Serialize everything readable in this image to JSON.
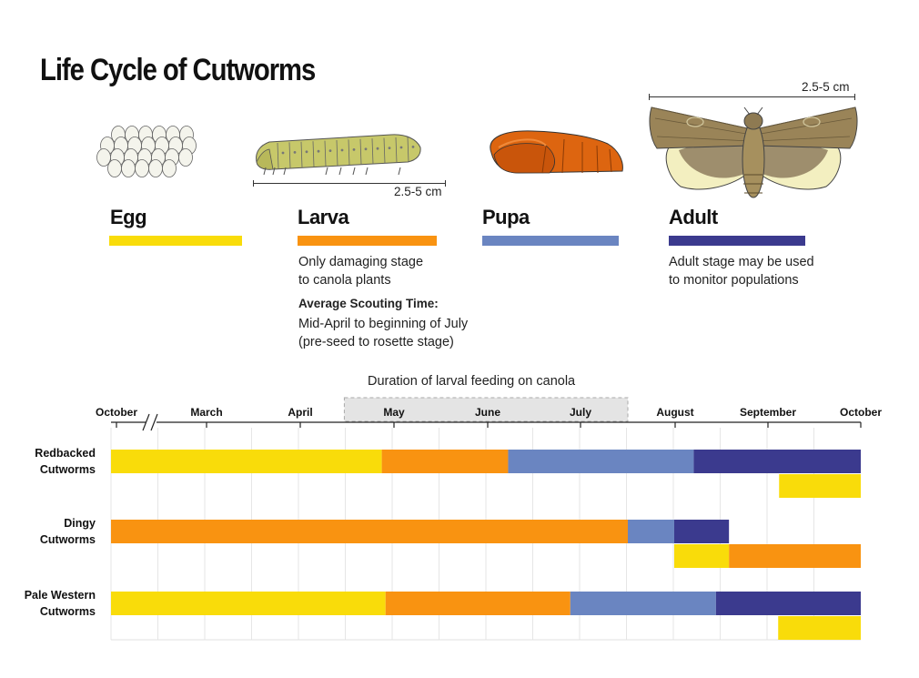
{
  "title": "Life Cycle of Cutworms",
  "colors": {
    "egg": "#f9dc0a",
    "larva": "#f99311",
    "pupa": "#6a85c1",
    "adult": "#3b3a8e",
    "window": "#e4e4e4"
  },
  "stages": [
    {
      "key": "egg",
      "label": "Egg",
      "icon": "egg-cluster-icon"
    },
    {
      "key": "larva",
      "label": "Larva",
      "icon": "larva-icon",
      "size": "2.5-5 cm",
      "description": [
        "Only damaging stage",
        "to canola plants"
      ],
      "scouting_title": "Average Scouting Time:",
      "scouting_text": [
        "Mid-April to beginning of July",
        "(pre-seed to rosette stage)"
      ]
    },
    {
      "key": "pupa",
      "label": "Pupa",
      "icon": "pupa-icon"
    },
    {
      "key": "adult",
      "label": "Adult",
      "icon": "moth-icon",
      "size": "2.5-5 cm",
      "description": [
        "Adult stage may be used",
        "to monitor populations"
      ]
    }
  ],
  "timeline": {
    "window_label": "Duration of  larval feeding on canola",
    "months": [
      "October",
      "March",
      "April",
      "May",
      "June",
      "July",
      "August",
      "September",
      "October"
    ],
    "axis_break": "//",
    "species": [
      {
        "name": [
          "Redbacked",
          "Cutworms"
        ],
        "rows": [
          [
            {
              "stage": "egg",
              "start": 0,
              "end": 2.87
            },
            {
              "stage": "larva",
              "start": 2.87,
              "end": 4.22
            },
            {
              "stage": "pupa",
              "start": 4.22,
              "end": 6.2
            },
            {
              "stage": "adult",
              "start": 6.2,
              "end": 8
            }
          ],
          [
            {
              "stage": "egg",
              "start": 7.12,
              "end": 8
            }
          ]
        ]
      },
      {
        "name": [
          "Dingy",
          "Cutworms"
        ],
        "rows": [
          [
            {
              "stage": "larva",
              "start": 0,
              "end": 5.5
            },
            {
              "stage": "pupa",
              "start": 5.5,
              "end": 5.99
            },
            {
              "stage": "adult",
              "start": 5.99,
              "end": 6.58
            }
          ],
          [
            {
              "stage": "egg",
              "start": 5.99,
              "end": 6.58
            },
            {
              "stage": "larva",
              "start": 6.58,
              "end": 8
            }
          ]
        ]
      },
      {
        "name": [
          "Pale Western",
          "Cutworms"
        ],
        "rows": [
          [
            {
              "stage": "egg",
              "start": 0,
              "end": 2.91
            },
            {
              "stage": "larva",
              "start": 2.91,
              "end": 4.89
            },
            {
              "stage": "pupa",
              "start": 4.89,
              "end": 6.44
            },
            {
              "stage": "adult",
              "start": 6.44,
              "end": 8
            }
          ],
          [
            {
              "stage": "egg",
              "start": 7.11,
              "end": 8
            }
          ]
        ]
      }
    ]
  }
}
